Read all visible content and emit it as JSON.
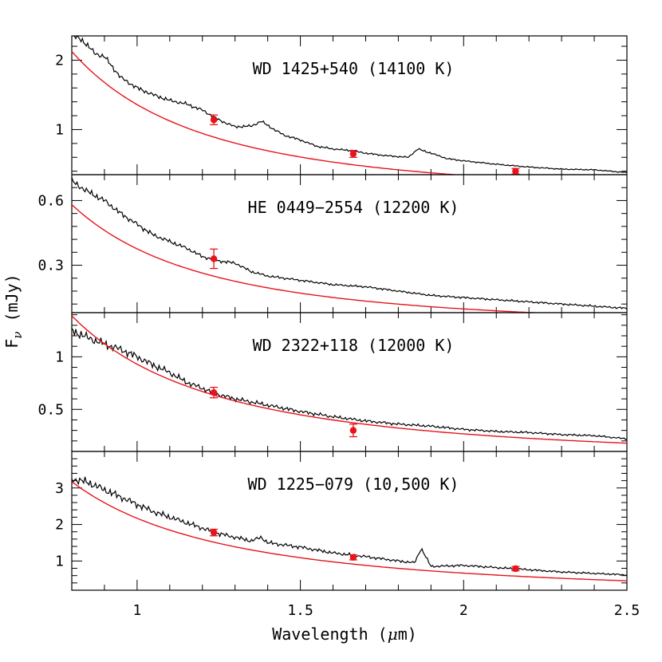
{
  "chart_data": {
    "type": "line",
    "xlabel_main": "Wavelength (",
    "xlabel_sym": "μ",
    "xlabel_end": "m)",
    "ylabel_main": "F",
    "ylabel_sub": "ν",
    "ylabel_end": " (mJy)",
    "xlim": [
      0.8,
      2.5
    ],
    "x_ticks": [
      1,
      1.5,
      2,
      2.5
    ],
    "x_tick_labels": [
      "1",
      "1.5",
      "2",
      "2.5"
    ],
    "model_color": "#e8131b",
    "spectrum_color": "#000000",
    "panels": [
      {
        "title": "WD 1425+540 (14100 K)",
        "ylim": [
          0.35,
          2.35
        ],
        "y_ticks": [
          1,
          2
        ],
        "y_tick_labels": [
          "1",
          "2"
        ],
        "model": {
          "amp": 1.36,
          "power": 2.0,
          "anchor": 1.0
        },
        "spectrum_anchors": [
          [
            0.8,
            2.35
          ],
          [
            0.83,
            2.3
          ],
          [
            0.87,
            2.1
          ],
          [
            0.9,
            2.05
          ],
          [
            0.95,
            1.75
          ],
          [
            1.0,
            1.6
          ],
          [
            1.05,
            1.5
          ],
          [
            1.1,
            1.42
          ],
          [
            1.15,
            1.37
          ],
          [
            1.2,
            1.28
          ],
          [
            1.25,
            1.14
          ],
          [
            1.3,
            1.04
          ],
          [
            1.35,
            1.05
          ],
          [
            1.38,
            1.12
          ],
          [
            1.42,
            1.0
          ],
          [
            1.45,
            0.92
          ],
          [
            1.5,
            0.85
          ],
          [
            1.55,
            0.76
          ],
          [
            1.6,
            0.72
          ],
          [
            1.65,
            0.7
          ],
          [
            1.7,
            0.66
          ],
          [
            1.75,
            0.63
          ],
          [
            1.8,
            0.61
          ],
          [
            1.83,
            0.6
          ],
          [
            1.86,
            0.72
          ],
          [
            1.9,
            0.66
          ],
          [
            1.95,
            0.58
          ],
          [
            2.0,
            0.55
          ],
          [
            2.1,
            0.5
          ],
          [
            2.2,
            0.46
          ],
          [
            2.3,
            0.43
          ],
          [
            2.4,
            0.42
          ],
          [
            2.5,
            0.38
          ]
        ],
        "noise_amp": 0.018,
        "photometry": [
          {
            "x": 1.235,
            "y": 1.14,
            "err": 0.07
          },
          {
            "x": 1.662,
            "y": 0.65,
            "err": 0.05
          },
          {
            "x": 2.159,
            "y": 0.4,
            "err": 0.04
          }
        ]
      },
      {
        "title": "HE 0449−2554 (12200 K)",
        "ylim": [
          0.08,
          0.72
        ],
        "y_ticks": [
          0.3,
          0.6
        ],
        "y_tick_labels": [
          "0.3",
          "0.6"
        ],
        "model": {
          "amp": 0.376,
          "power": 1.95,
          "anchor": 1.0
        },
        "spectrum_anchors": [
          [
            0.8,
            0.69
          ],
          [
            0.85,
            0.64
          ],
          [
            0.9,
            0.6
          ],
          [
            0.95,
            0.54
          ],
          [
            1.0,
            0.49
          ],
          [
            1.05,
            0.44
          ],
          [
            1.1,
            0.41
          ],
          [
            1.15,
            0.38
          ],
          [
            1.2,
            0.34
          ],
          [
            1.25,
            0.32
          ],
          [
            1.3,
            0.31
          ],
          [
            1.35,
            0.27
          ],
          [
            1.4,
            0.25
          ],
          [
            1.5,
            0.23
          ],
          [
            1.6,
            0.21
          ],
          [
            1.7,
            0.2
          ],
          [
            1.8,
            0.18
          ],
          [
            1.9,
            0.16
          ],
          [
            2.0,
            0.15
          ],
          [
            2.1,
            0.14
          ],
          [
            2.2,
            0.13
          ],
          [
            2.3,
            0.12
          ],
          [
            2.4,
            0.11
          ],
          [
            2.5,
            0.1
          ]
        ],
        "noise_amp": 0.022,
        "photometry": [
          {
            "x": 1.235,
            "y": 0.33,
            "err": 0.045
          }
        ]
      },
      {
        "title": "WD 2322+118 (12000 K)",
        "ylim": [
          0.1,
          1.42
        ],
        "y_ticks": [
          0.5,
          1
        ],
        "y_tick_labels": [
          "0.5",
          "1"
        ],
        "model": {
          "amp": 0.93,
          "power": 1.8,
          "anchor": 1.0
        },
        "spectrum_anchors": [
          [
            0.8,
            1.25
          ],
          [
            0.85,
            1.18
          ],
          [
            0.9,
            1.12
          ],
          [
            0.95,
            1.07
          ],
          [
            1.0,
            1.0
          ],
          [
            1.05,
            0.92
          ],
          [
            1.1,
            0.85
          ],
          [
            1.15,
            0.76
          ],
          [
            1.2,
            0.7
          ],
          [
            1.25,
            0.64
          ],
          [
            1.3,
            0.6
          ],
          [
            1.4,
            0.54
          ],
          [
            1.5,
            0.48
          ],
          [
            1.6,
            0.43
          ],
          [
            1.7,
            0.39
          ],
          [
            1.8,
            0.36
          ],
          [
            1.9,
            0.34
          ],
          [
            2.0,
            0.31
          ],
          [
            2.1,
            0.29
          ],
          [
            2.2,
            0.28
          ],
          [
            2.3,
            0.26
          ],
          [
            2.4,
            0.25
          ],
          [
            2.5,
            0.22
          ]
        ],
        "noise_amp": 0.035,
        "photometry": [
          {
            "x": 1.235,
            "y": 0.66,
            "err": 0.05
          },
          {
            "x": 1.662,
            "y": 0.3,
            "err": 0.06
          }
        ]
      },
      {
        "title": "WD 1225−079 (10,500 K)",
        "ylim": [
          0.2,
          4.0
        ],
        "y_ticks": [
          1,
          2,
          3
        ],
        "y_tick_labels": [
          "1",
          "2",
          "3"
        ],
        "model": {
          "amp": 2.17,
          "power": 1.7,
          "anchor": 1.0
        },
        "spectrum_anchors": [
          [
            0.8,
            3.25
          ],
          [
            0.85,
            3.15
          ],
          [
            0.9,
            2.95
          ],
          [
            0.95,
            2.75
          ],
          [
            1.0,
            2.55
          ],
          [
            1.05,
            2.35
          ],
          [
            1.1,
            2.2
          ],
          [
            1.15,
            2.05
          ],
          [
            1.2,
            1.9
          ],
          [
            1.25,
            1.75
          ],
          [
            1.3,
            1.65
          ],
          [
            1.35,
            1.55
          ],
          [
            1.38,
            1.65
          ],
          [
            1.4,
            1.5
          ],
          [
            1.5,
            1.38
          ],
          [
            1.6,
            1.22
          ],
          [
            1.7,
            1.12
          ],
          [
            1.8,
            1.0
          ],
          [
            1.85,
            0.95
          ],
          [
            1.87,
            1.35
          ],
          [
            1.9,
            0.85
          ],
          [
            2.0,
            0.88
          ],
          [
            2.1,
            0.82
          ],
          [
            2.2,
            0.76
          ],
          [
            2.3,
            0.7
          ],
          [
            2.4,
            0.66
          ],
          [
            2.5,
            0.62
          ]
        ],
        "noise_amp": 0.035,
        "photometry": [
          {
            "x": 1.235,
            "y": 1.78,
            "err": 0.09
          },
          {
            "x": 1.662,
            "y": 1.1,
            "err": 0.07
          },
          {
            "x": 2.159,
            "y": 0.79,
            "err": 0.06
          }
        ]
      }
    ]
  }
}
